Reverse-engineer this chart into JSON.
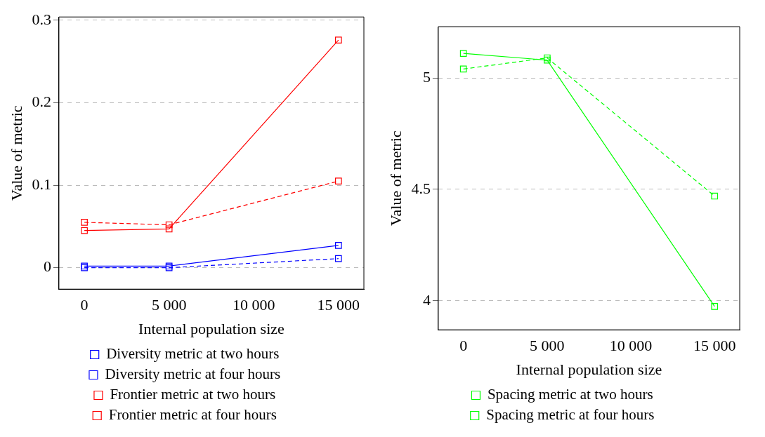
{
  "chart_data": [
    {
      "type": "line",
      "xlabel": "Internal population size",
      "ylabel": "Value of metric",
      "x": [
        0,
        5000,
        15000
      ],
      "xlim": [
        -1500,
        16500
      ],
      "xticks": [
        0,
        {
          "value": 5000,
          "label": "5 000"
        },
        {
          "value": 10000,
          "label": "10 000"
        },
        {
          "value": 15000,
          "label": "15 000"
        }
      ],
      "ylim": [
        -0.026,
        0.304
      ],
      "yticks": [
        0,
        0.1,
        0.2,
        0.3
      ],
      "grid": "y",
      "legend": "bottom",
      "marker": "square",
      "series": [
        {
          "name": "Diversity metric at two hours",
          "color": "#0000ff",
          "line_style": "solid",
          "values": [
            0.002,
            0.002,
            0.027
          ]
        },
        {
          "name": "Diversity metric at four hours",
          "color": "#0000ff",
          "line_style": "dashed",
          "values": [
            0.0,
            0.0,
            0.011
          ]
        },
        {
          "name": "Frontier metric at two hours",
          "color": "#ff0000",
          "line_style": "solid",
          "values": [
            0.045,
            0.047,
            0.276
          ]
        },
        {
          "name": "Frontier metric at four hours",
          "color": "#ff0000",
          "line_style": "dashed",
          "values": [
            0.055,
            0.052,
            0.105
          ]
        }
      ]
    },
    {
      "type": "line",
      "xlabel": "Internal population size",
      "ylabel": "Value of metric",
      "x": [
        0,
        5000,
        15000
      ],
      "xlim": [
        -1500,
        16500
      ],
      "xticks": [
        0,
        {
          "value": 5000,
          "label": "5 000"
        },
        {
          "value": 10000,
          "label": "10 000"
        },
        {
          "value": 15000,
          "label": "15 000"
        }
      ],
      "ylim": [
        3.87,
        5.23
      ],
      "yticks": [
        4,
        4.5,
        5
      ],
      "grid": "y",
      "legend": "bottom",
      "marker": "square",
      "series": [
        {
          "name": "Spacing metric at two hours",
          "color": "#00ff00",
          "line_style": "solid",
          "values": [
            5.11,
            5.08,
            3.975
          ]
        },
        {
          "name": "Spacing metric at four hours",
          "color": "#00ff00",
          "line_style": "dashed",
          "values": [
            5.04,
            5.09,
            4.47
          ]
        }
      ]
    }
  ]
}
